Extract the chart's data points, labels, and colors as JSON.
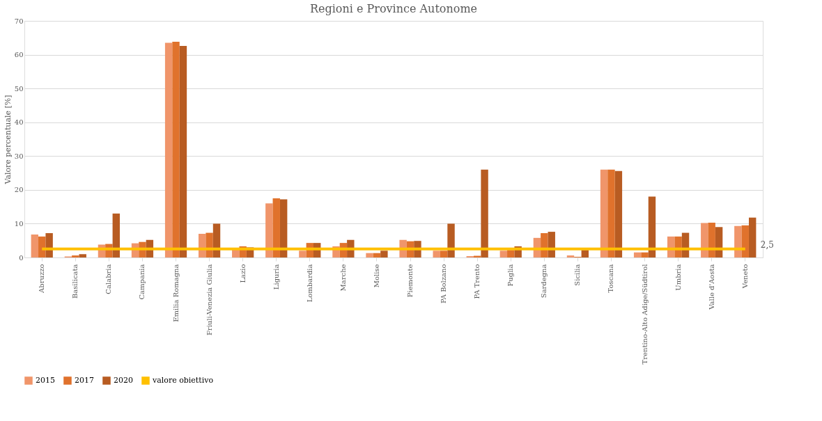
{
  "chart_data": {
    "type": "bar",
    "title": "Regioni e Province Autonome",
    "ylabel": "Valore percentuale [%]",
    "categories": [
      "Abruzzo",
      "Basilicata",
      "Calabria",
      "Campania",
      "Emilia Romagna",
      "Friuli-Venezia Giulia",
      "Lazio",
      "Liguria",
      "Lombardia",
      "Marche",
      "Molise",
      "Piemonte",
      "PA Bolzano",
      "PA Trento",
      "Puglia",
      "Sardegna",
      "Sicilia",
      "Toscana",
      "Trentino-Alto Adige/Südtirol",
      "Umbria",
      "Valle d'Aosta",
      "Veneto"
    ],
    "series": [
      {
        "name": "2015",
        "color": "#f0956a",
        "values": [
          6.8,
          0.3,
          3.8,
          4.2,
          63.5,
          7.0,
          2.5,
          16.0,
          2.0,
          3.3,
          1.3,
          5.2,
          2.0,
          0.4,
          2.0,
          5.8,
          0.6,
          26.0,
          1.5,
          6.2,
          10.2,
          9.3
        ]
      },
      {
        "name": "2017",
        "color": "#e0722c",
        "values": [
          6.2,
          0.6,
          4.0,
          4.6,
          63.8,
          7.3,
          3.3,
          17.5,
          4.3,
          4.3,
          1.3,
          4.8,
          2.0,
          0.5,
          2.2,
          7.2,
          0.2,
          26.0,
          1.5,
          6.2,
          10.3,
          9.5
        ]
      },
      {
        "name": "2020",
        "color": "#b85c22",
        "values": [
          7.2,
          1.0,
          13.0,
          5.2,
          62.6,
          10.0,
          3.0,
          17.2,
          4.3,
          5.2,
          2.0,
          4.9,
          10.0,
          26.0,
          3.3,
          7.6,
          2.2,
          25.6,
          18.0,
          7.3,
          9.0,
          11.8
        ]
      },
      {
        "name": "valore obiettivo",
        "type": "line",
        "color": "#ffc000",
        "values": [
          2.5,
          2.5,
          2.5,
          2.5,
          2.5,
          2.5,
          2.5,
          2.5,
          2.5,
          2.5,
          2.5,
          2.5,
          2.5,
          2.5,
          2.5,
          2.5,
          2.5,
          2.5,
          2.5,
          2.5,
          2.5,
          2.5
        ]
      }
    ],
    "annotations": [
      {
        "text": "2,5",
        "x": "Veneto",
        "y": 2.5
      }
    ],
    "ylim": [
      0,
      70
    ],
    "yticks": [
      0,
      10,
      20,
      30,
      40,
      50,
      60,
      70
    ],
    "grid": "y",
    "legend": "bottom"
  }
}
